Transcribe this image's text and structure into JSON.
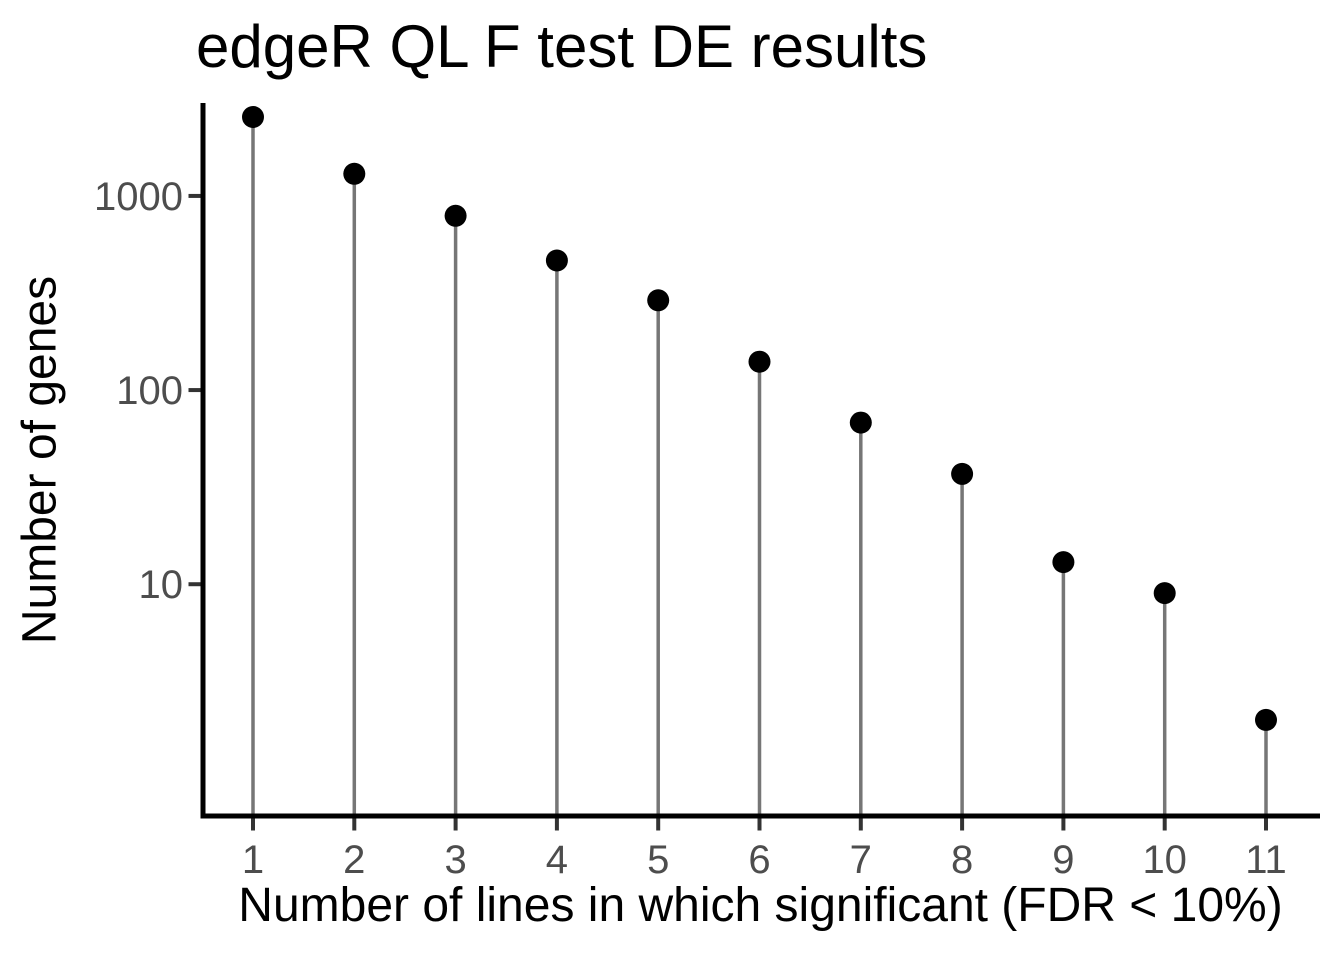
{
  "chart_data": {
    "type": "lollipop",
    "title": "edgeR QL F test DE results",
    "xlabel": "Number of lines in which significant (FDR < 10%)",
    "ylabel": "Number of genes",
    "categories": [
      1,
      2,
      3,
      4,
      5,
      6,
      7,
      8,
      9,
      10,
      11
    ],
    "values": [
      2550,
      1300,
      790,
      465,
      290,
      140,
      68,
      37,
      13,
      9,
      2
    ],
    "xtick_labels": [
      "1",
      "2",
      "3",
      "4",
      "5",
      "6",
      "7",
      "8",
      "9",
      "10",
      "11"
    ],
    "yticks": [
      10,
      100,
      1000
    ],
    "ytick_labels": [
      "10",
      "100",
      "1000"
    ],
    "yscale": "log10",
    "ylim": [
      0.64,
      2940
    ],
    "grid": false,
    "legend": null,
    "colors": {
      "point": "#000000",
      "stem": "#767676",
      "axis_line": "#000000",
      "tick_mark": "#333333",
      "tick_label": "#4d4d4d",
      "title_text": "#000000",
      "axis_title_text": "#000000",
      "background": "#ffffff"
    }
  }
}
